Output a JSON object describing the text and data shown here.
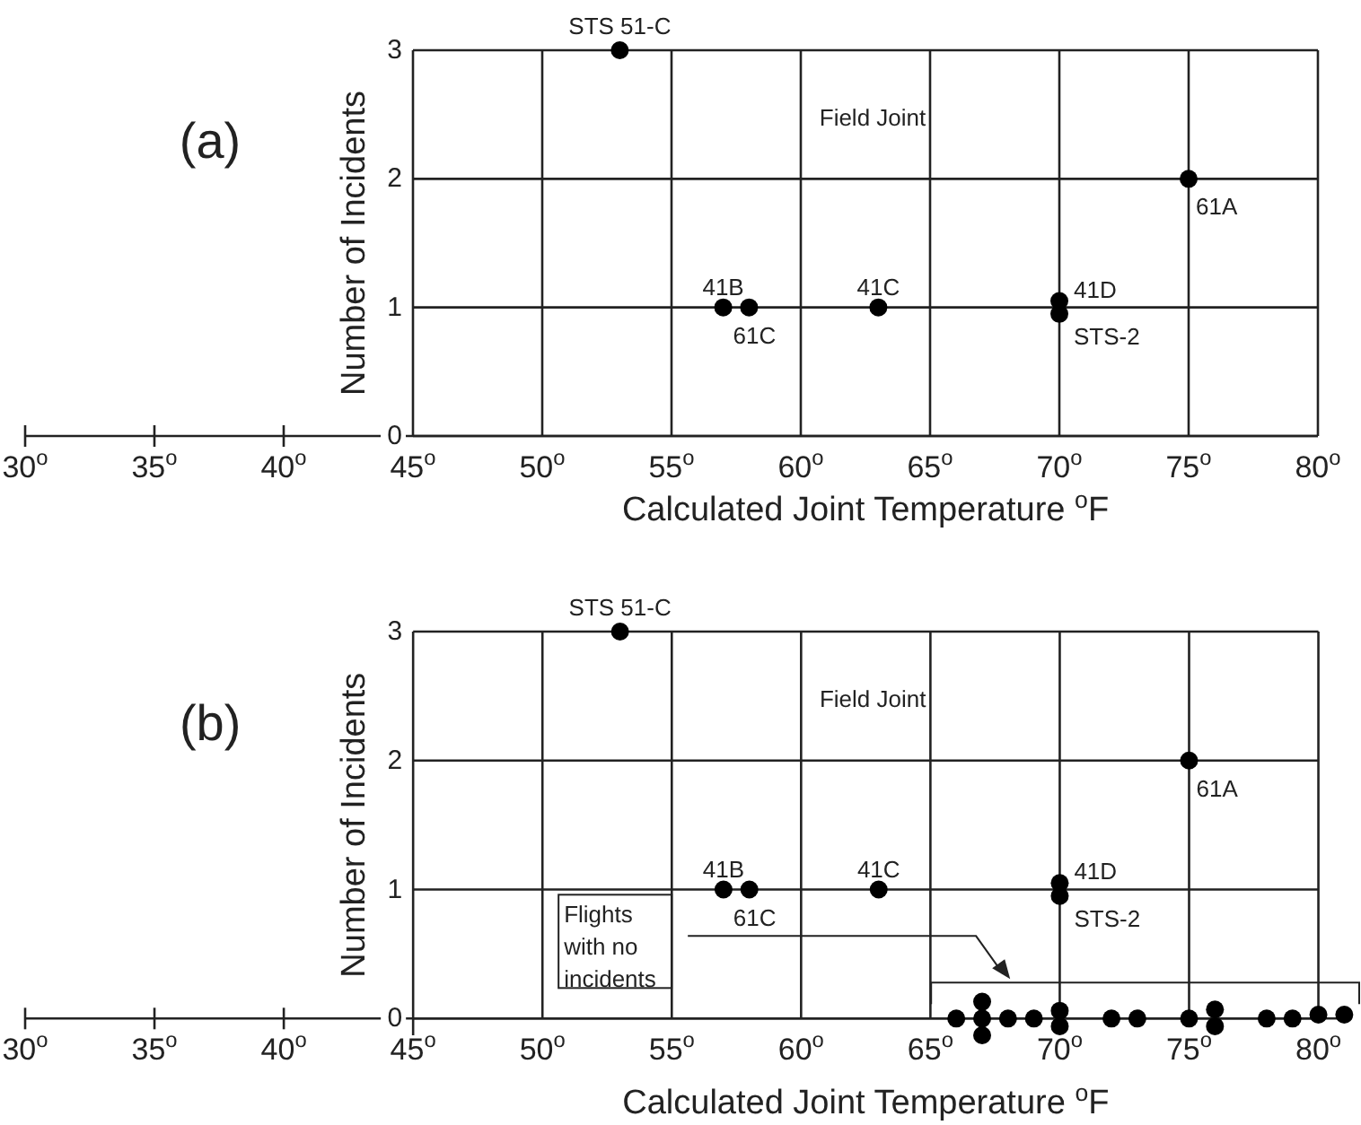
{
  "chart_data": [
    {
      "type": "scatter",
      "title": "Field Joint",
      "xlabel": "Calculated Joint Temperature $^{o}$F",
      "ylabel": "Number of Incidents",
      "x": [
        53,
        57,
        58,
        63,
        70,
        70,
        75
      ],
      "values": [
        3,
        1,
        1,
        1,
        1.05,
        0.95,
        2
      ],
      "color": "#000000",
      "marker": "circle",
      "xlim": [
        30,
        80
      ],
      "xticks": [
        {
          "value": 30,
          "label": "30$^{o}$"
        },
        {
          "value": 35,
          "label": "35$^{o}$"
        },
        {
          "value": 40,
          "label": "40$^{o}$"
        },
        {
          "value": 45,
          "label": "45$^{o}$"
        },
        {
          "value": 50,
          "label": "50$^{o}$"
        },
        {
          "value": 55,
          "label": "55$^{o}$"
        },
        {
          "value": 60,
          "label": "60$^{o}$"
        },
        {
          "value": 65,
          "label": "65$^{o}$"
        },
        {
          "value": 70,
          "label": "70$^{o}$"
        },
        {
          "value": 75,
          "label": "75$^{o}$"
        },
        {
          "value": 80,
          "label": "80$^{o}$"
        }
      ],
      "ylim": [
        0,
        3
      ],
      "yticks": [
        0,
        1,
        2,
        3
      ],
      "grid": true,
      "annotations": [
        "(a)",
        {
          "text": "STS 51-C",
          "x": 53,
          "y": 3
        },
        {
          "text": "41B",
          "x": 57,
          "y": 1
        },
        {
          "text": "61C",
          "x": 58,
          "y": 1
        },
        {
          "text": "41C",
          "x": 63,
          "y": 1
        },
        {
          "text": "41D",
          "x": 70,
          "y": 1.05
        },
        {
          "text": "STS-2",
          "x": 70,
          "y": 0.95
        },
        {
          "text": "61A",
          "x": 75,
          "y": 2
        }
      ]
    },
    {
      "type": "scatter",
      "title": "Field Joint",
      "xlabel": "Calculated Joint Temperature $^{o}$F",
      "ylabel": "Number of Incidents",
      "x": [
        53,
        57,
        58,
        63,
        70,
        70,
        75,
        66,
        67,
        67,
        67,
        68,
        69,
        70,
        70,
        72,
        73,
        75,
        76,
        76,
        78,
        79,
        80,
        81
      ],
      "values": [
        3,
        1,
        1,
        1,
        1.05,
        0.95,
        2,
        0,
        0.13,
        0,
        -0.13,
        0,
        0,
        0.06,
        -0.06,
        0,
        0,
        0,
        0.07,
        -0.06,
        0,
        0,
        0.03,
        0.03
      ],
      "color": "#000000",
      "marker": "circle",
      "xlim": [
        30,
        81.3
      ],
      "xticks": [
        {
          "value": 30,
          "label": "30$^{o}$"
        },
        {
          "value": 35,
          "label": "35$^{o}$"
        },
        {
          "value": 40,
          "label": "40$^{o}$"
        },
        {
          "value": 45,
          "label": "45$^{o}$"
        },
        {
          "value": 50,
          "label": "50$^{o}$"
        },
        {
          "value": 55,
          "label": "55$^{o}$"
        },
        {
          "value": 60,
          "label": "60$^{o}$"
        },
        {
          "value": 65,
          "label": "65$^{o}$"
        },
        {
          "value": 70,
          "label": "70$^{o}$"
        },
        {
          "value": 75,
          "label": "75$^{o}$"
        },
        {
          "value": 80,
          "label": "80$^{o}$"
        }
      ],
      "ylim": [
        -0.13,
        3
      ],
      "yticks": [
        0,
        1,
        2,
        3
      ],
      "grid": true,
      "annotations": [
        "(b)",
        "Flights with no incidents",
        {
          "text": "STS 51-C",
          "x": 53,
          "y": 3
        },
        {
          "text": "41B",
          "x": 57,
          "y": 1
        },
        {
          "text": "61C",
          "x": 58,
          "y": 1
        },
        {
          "text": "41C",
          "x": 63,
          "y": 1
        },
        {
          "text": "41D",
          "x": 70,
          "y": 1.05
        },
        {
          "text": "STS-2",
          "x": 70,
          "y": 0.95
        },
        {
          "text": "61A",
          "x": 75,
          "y": 2
        }
      ]
    }
  ]
}
